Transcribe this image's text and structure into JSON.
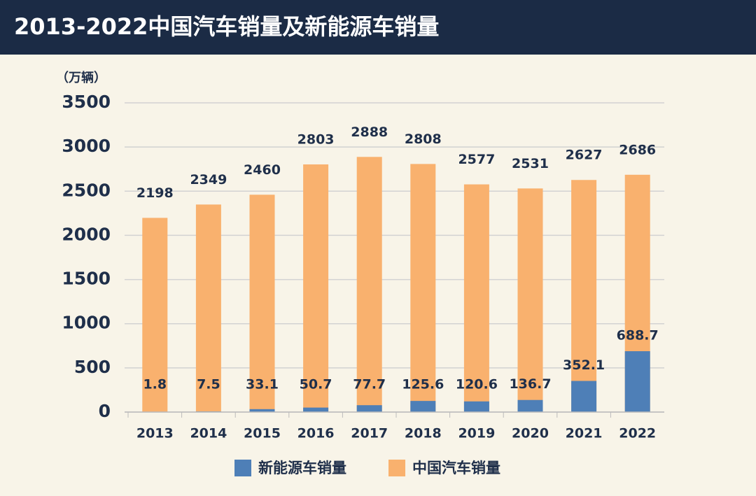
{
  "chart_data": {
    "type": "bar",
    "bar_mode": "overlay",
    "title": "2013-2022中国汽车销量及新能源车销量",
    "y_label": "（万辆）",
    "categories": [
      "2013",
      "2014",
      "2015",
      "2016",
      "2017",
      "2018",
      "2019",
      "2020",
      "2021",
      "2022"
    ],
    "series": [
      {
        "name": "新能源车销量",
        "color": "#4e7fb7",
        "values": [
          1.8,
          7.5,
          33.1,
          50.7,
          77.7,
          125.6,
          120.6,
          136.7,
          352.1,
          688.7
        ]
      },
      {
        "name": "中国汽车销量",
        "color": "#f9b16e",
        "values": [
          2198,
          2349,
          2460,
          2803,
          2888,
          2808,
          2577,
          2531,
          2627,
          2686
        ]
      }
    ],
    "ylim": [
      0,
      3500
    ],
    "yticks": [
      0,
      500,
      1000,
      1500,
      2000,
      2500,
      3000,
      3500
    ],
    "grid": true,
    "legend": "bottom"
  }
}
